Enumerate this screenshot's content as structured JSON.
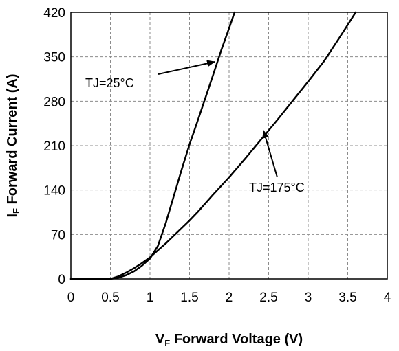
{
  "chart_data": {
    "type": "line",
    "xlabel_main": "V",
    "xlabel_sub": "F",
    "xlabel_rest": " Forward Voltage (V)",
    "ylabel_main": "I",
    "ylabel_sub": "F",
    "ylabel_rest": " Forward Current (A)",
    "xlim": [
      0,
      4
    ],
    "ylim": [
      0,
      420
    ],
    "x_ticks": [
      "0",
      "0.5",
      "1",
      "1.5",
      "2",
      "2.5",
      "3",
      "3.5",
      "4"
    ],
    "y_ticks": [
      "0",
      "70",
      "140",
      "210",
      "280",
      "350",
      "420"
    ],
    "grid": true,
    "series": [
      {
        "name": "TJ=25°C",
        "x": [
          0,
          0.5,
          0.6,
          0.7,
          0.8,
          0.9,
          1.0,
          1.1,
          1.2,
          1.3,
          1.4,
          1.5,
          1.6,
          1.7,
          1.8,
          1.9,
          2.0,
          2.07
        ],
        "y": [
          0,
          0,
          2,
          6,
          12,
          21,
          32,
          52,
          88,
          130,
          172,
          212,
          248,
          285,
          322,
          360,
          395,
          420
        ]
      },
      {
        "name": "TJ=175°C",
        "x": [
          0,
          0.5,
          0.6,
          0.7,
          0.8,
          0.9,
          1.0,
          1.2,
          1.4,
          1.5,
          1.6,
          1.8,
          2.0,
          2.2,
          2.4,
          2.6,
          2.8,
          3.0,
          3.2,
          3.4,
          3.6
        ],
        "y": [
          0,
          0,
          4,
          10,
          17,
          25,
          34,
          56,
          80,
          92,
          105,
          133,
          160,
          189,
          219,
          249,
          280,
          311,
          343,
          381,
          420
        ]
      }
    ],
    "annotations": [
      {
        "text": "TJ=25°C",
        "series": "TJ=25°C",
        "point": [
          1.85,
          340
        ]
      },
      {
        "text": "TJ=175°C",
        "series": "TJ=175°C",
        "point": [
          2.4,
          230
        ]
      }
    ]
  }
}
